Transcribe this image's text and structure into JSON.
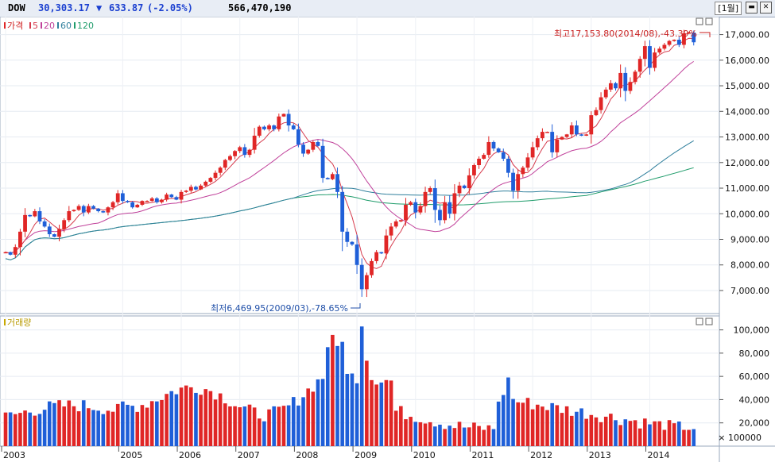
{
  "header": {
    "symbol": "DOW",
    "price": "30,303.17",
    "change_arrow": "▼",
    "change": "633.87",
    "change_pct": "(-2.05%)",
    "volume": "566,470,190",
    "period": "[1월]",
    "colors": {
      "down": "#1a3fd0",
      "symbol": "#000000"
    }
  },
  "legend": {
    "price": "가격",
    "ma5": "5",
    "ma20": "20",
    "ma60": "60",
    "ma120": "120",
    "volume": "거래량"
  },
  "annotations": {
    "high": "최고17,153.80(2014/08),-43.39%",
    "low": "최저6,469.95(2009/03),-78.65%"
  },
  "chart_data": {
    "type": "candlestick",
    "price_axis": {
      "ticks": [
        "7,000.00",
        "8,000.00",
        "9,000.00",
        "10,000.00",
        "11,000.00",
        "12,000.00",
        "13,000.00",
        "14,000.00",
        "15,000.00",
        "16,000.00",
        "17,000.00"
      ],
      "values": [
        7000,
        8000,
        9000,
        10000,
        11000,
        12000,
        13000,
        14000,
        15000,
        16000,
        17000
      ],
      "range": [
        6100,
        17700
      ]
    },
    "volume_axis": {
      "ticks": [
        "20,000",
        "40,000",
        "60,000",
        "80,000",
        "100,000"
      ],
      "values": [
        20000,
        40000,
        60000,
        80000,
        100000
      ],
      "range": [
        0,
        112000
      ],
      "unit": "× 100000"
    },
    "x_axis": {
      "labels": [
        "2003",
        "2005",
        "2006",
        "2007",
        "2008",
        "2009",
        "2010",
        "2011",
        "2012",
        "2013",
        "2014"
      ],
      "label_month_index": [
        0,
        24,
        36,
        48,
        60,
        72,
        84,
        96,
        108,
        120,
        132
      ]
    },
    "start_close": 8500,
    "ma_colors": {
      "ma5": "#d63a4c",
      "ma20": "#c0409a",
      "ma60": "#2f7f9c",
      "ma120": "#1f9c6b"
    },
    "candle_colors": {
      "up": "#e02626",
      "down": "#1f5fd8"
    },
    "monthly_closes": [
      8500,
      8400,
      8700,
      9300,
      9950,
      9900,
      10100,
      9700,
      9500,
      9200,
      9100,
      9400,
      9750,
      10100,
      10150,
      10300,
      10050,
      10300,
      10200,
      10100,
      10050,
      10250,
      10450,
      10800,
      10500,
      10450,
      10250,
      10350,
      10500,
      10500,
      10600,
      10450,
      10550,
      10750,
      10650,
      10550,
      10850,
      10900,
      11050,
      10950,
      11100,
      11250,
      11400,
      11600,
      11800,
      12100,
      12250,
      12450,
      12600,
      12300,
      12500,
      13050,
      13400,
      13300,
      13450,
      13300,
      13800,
      13900,
      13450,
      13300,
      12700,
      12350,
      12500,
      12800,
      12650,
      11400,
      11350,
      11550,
      10850,
      9300,
      8900,
      8800,
      8000,
      7050,
      7600,
      8150,
      8500,
      8450,
      9150,
      9500,
      9700,
      9750,
      10350,
      10450,
      10050,
      10300,
      10850,
      11000,
      10150,
      9750,
      10450,
      10000,
      10800,
      11100,
      11000,
      11500,
      11900,
      12150,
      12300,
      12800,
      12550,
      12400,
      12150,
      11600,
      10900,
      11550,
      11800,
      12200,
      12600,
      12950,
      13200,
      13200,
      12400,
      12900,
      13000,
      13100,
      13450,
      13100,
      13050,
      13100,
      13850,
      14050,
      14550,
      14850,
      15100,
      14900,
      15500,
      14800,
      15150,
      15550,
      16050,
      16550,
      15700,
      16300,
      16450,
      16600,
      16750,
      16800,
      16600,
      17050,
      17080,
      16700
    ]
  }
}
